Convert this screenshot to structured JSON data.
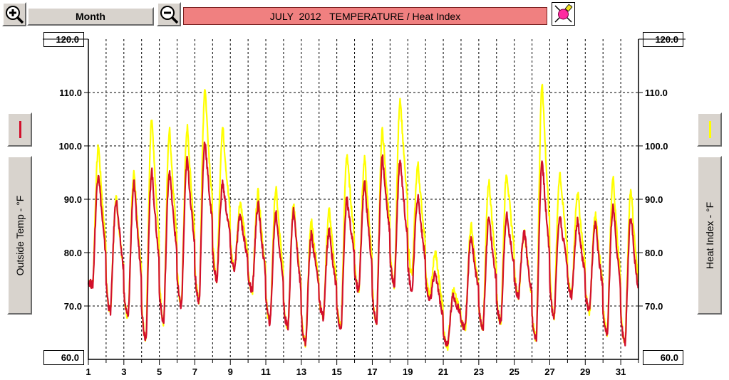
{
  "toolbar": {
    "zoom_in_icon": "zoom-in-magnifier-icon",
    "zoom_out_icon": "zoom-out-magnifier-icon",
    "period_label": "Month",
    "edit_icon": "paint-brush-icon"
  },
  "title": "JULY  2012   TEMPERATURE / Heat Index",
  "colors": {
    "title_bg": "#f08080",
    "temp_series": "#d2102c",
    "heat_series": "#ffff00",
    "grid": "#000000"
  },
  "left_axis": {
    "label": "Outside Temp - °F",
    "max_box": "120.0",
    "min_box": "60.0"
  },
  "right_axis": {
    "label": "Heat Index - °F",
    "max_box": "120.0",
    "min_box": "60.0"
  },
  "chart_data": {
    "type": "line",
    "title": "JULY  2012   TEMPERATURE / Heat Index",
    "x_unit": "day of month",
    "xlim": [
      1,
      32
    ],
    "ylim": [
      60,
      120
    ],
    "y_ticks": [
      "70.0",
      "80.0",
      "90.0",
      "100.0",
      "110.0"
    ],
    "y_tick_values": [
      70,
      80,
      90,
      100,
      110
    ],
    "x_ticks": [
      "1",
      "3",
      "5",
      "7",
      "9",
      "11",
      "13",
      "15",
      "17",
      "19",
      "21",
      "23",
      "25",
      "27",
      "29",
      "31"
    ],
    "x_tick_values": [
      1,
      3,
      5,
      7,
      9,
      11,
      13,
      15,
      17,
      19,
      21,
      23,
      25,
      27,
      29,
      31
    ],
    "grid": true,
    "series": [
      {
        "name": "Heat Index - °F",
        "color": "#ffff00",
        "daily_min": [
          74,
          69,
          68,
          64,
          67,
          70,
          71,
          75,
          77,
          73,
          67,
          66,
          63,
          68,
          66,
          73,
          67,
          74,
          76,
          72,
          62.5,
          66,
          66,
          67,
          72,
          64,
          68,
          72,
          69,
          65,
          63,
          69
        ],
        "daily_max": [
          100,
          90,
          95.5,
          105,
          103,
          103.5,
          111,
          103.5,
          89.5,
          91.5,
          92,
          89,
          86,
          88,
          98.5,
          97.5,
          103,
          109,
          96.5,
          80,
          73,
          85,
          93.5,
          95,
          84,
          112,
          95,
          91.5,
          87.5,
          94,
          92,
          68
        ]
      },
      {
        "name": "Outside Temp - °F",
        "color": "#d2102c",
        "daily_min": [
          74,
          69,
          68,
          64,
          67,
          70,
          71,
          75,
          77,
          73,
          67,
          66,
          63,
          68,
          66,
          73,
          67,
          74,
          73,
          71,
          62.5,
          66,
          66,
          67,
          72,
          64,
          68,
          72,
          69,
          65,
          63,
          69
        ],
        "daily_max": [
          95,
          90,
          93,
          95.5,
          95.5,
          97.5,
          101,
          93,
          87,
          89,
          87.5,
          88,
          83.5,
          84,
          90,
          93,
          98,
          97.5,
          90.5,
          76,
          72,
          83,
          86.5,
          87,
          84,
          97.5,
          87,
          86,
          85.5,
          89,
          87,
          68
        ]
      }
    ]
  }
}
